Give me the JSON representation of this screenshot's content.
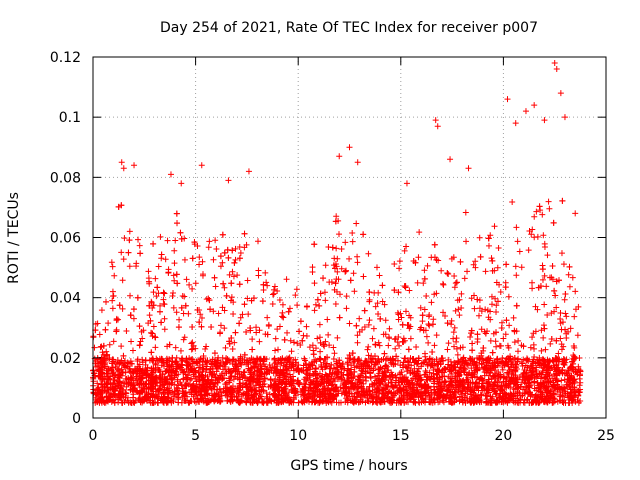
{
  "chart_data": {
    "type": "scatter",
    "title": "Day 254 of 2021, Rate Of TEC Index for receiver p007",
    "xlabel": "GPS time / hours",
    "ylabel": "ROTI / TECUs",
    "xlim": [
      0,
      25
    ],
    "ylim": [
      0,
      0.12
    ],
    "xticks": [
      0,
      5,
      10,
      15,
      20,
      25
    ],
    "xtick_labels": [
      "0",
      "5",
      "10",
      "15",
      "20",
      "25"
    ],
    "yticks": [
      0,
      0.02,
      0.04,
      0.06,
      0.08,
      0.1,
      0.12
    ],
    "ytick_labels": [
      "0",
      "0.02",
      "0.04",
      "0.06",
      "0.08",
      "0.1",
      "0.12"
    ],
    "grid": true,
    "marker": "+",
    "marker_color": "#ff0000",
    "x_range_of_data": [
      0,
      23.75
    ],
    "baseline_band": [
      0.005,
      0.02
    ],
    "notable_points": [
      {
        "x": 1.4,
        "y": 0.085
      },
      {
        "x": 1.5,
        "y": 0.083
      },
      {
        "x": 2.0,
        "y": 0.084
      },
      {
        "x": 3.8,
        "y": 0.081
      },
      {
        "x": 4.3,
        "y": 0.078
      },
      {
        "x": 5.3,
        "y": 0.084
      },
      {
        "x": 6.6,
        "y": 0.079
      },
      {
        "x": 7.6,
        "y": 0.082
      },
      {
        "x": 12.0,
        "y": 0.087
      },
      {
        "x": 12.5,
        "y": 0.09
      },
      {
        "x": 12.9,
        "y": 0.085
      },
      {
        "x": 15.3,
        "y": 0.078
      },
      {
        "x": 16.7,
        "y": 0.099
      },
      {
        "x": 16.8,
        "y": 0.097
      },
      {
        "x": 17.4,
        "y": 0.086
      },
      {
        "x": 18.3,
        "y": 0.083
      },
      {
        "x": 20.2,
        "y": 0.106
      },
      {
        "x": 20.6,
        "y": 0.098
      },
      {
        "x": 21.1,
        "y": 0.102
      },
      {
        "x": 21.5,
        "y": 0.104
      },
      {
        "x": 22.0,
        "y": 0.099
      },
      {
        "x": 22.5,
        "y": 0.118
      },
      {
        "x": 22.6,
        "y": 0.116
      },
      {
        "x": 22.8,
        "y": 0.108
      },
      {
        "x": 23.0,
        "y": 0.1
      },
      {
        "x": 23.5,
        "y": 0.068
      }
    ],
    "envelope": [
      {
        "x": 0.0,
        "y": 0.032
      },
      {
        "x": 0.5,
        "y": 0.045
      },
      {
        "x": 1.0,
        "y": 0.058
      },
      {
        "x": 1.5,
        "y": 0.068
      },
      {
        "x": 2.0,
        "y": 0.062
      },
      {
        "x": 2.5,
        "y": 0.05
      },
      {
        "x": 3.0,
        "y": 0.055
      },
      {
        "x": 3.5,
        "y": 0.06
      },
      {
        "x": 4.0,
        "y": 0.064
      },
      {
        "x": 4.5,
        "y": 0.06
      },
      {
        "x": 5.0,
        "y": 0.058
      },
      {
        "x": 5.5,
        "y": 0.062
      },
      {
        "x": 6.0,
        "y": 0.065
      },
      {
        "x": 6.5,
        "y": 0.068
      },
      {
        "x": 7.0,
        "y": 0.06
      },
      {
        "x": 7.5,
        "y": 0.065
      },
      {
        "x": 8.0,
        "y": 0.055
      },
      {
        "x": 8.5,
        "y": 0.05
      },
      {
        "x": 9.0,
        "y": 0.045
      },
      {
        "x": 9.5,
        "y": 0.048
      },
      {
        "x": 10.0,
        "y": 0.05
      },
      {
        "x": 10.5,
        "y": 0.058
      },
      {
        "x": 11.0,
        "y": 0.048
      },
      {
        "x": 11.5,
        "y": 0.052
      },
      {
        "x": 12.0,
        "y": 0.066
      },
      {
        "x": 12.5,
        "y": 0.07
      },
      {
        "x": 13.0,
        "y": 0.06
      },
      {
        "x": 13.5,
        "y": 0.05
      },
      {
        "x": 14.0,
        "y": 0.046
      },
      {
        "x": 14.5,
        "y": 0.048
      },
      {
        "x": 15.0,
        "y": 0.052
      },
      {
        "x": 15.5,
        "y": 0.06
      },
      {
        "x": 16.0,
        "y": 0.064
      },
      {
        "x": 16.5,
        "y": 0.07
      },
      {
        "x": 17.0,
        "y": 0.066
      },
      {
        "x": 17.5,
        "y": 0.062
      },
      {
        "x": 18.0,
        "y": 0.066
      },
      {
        "x": 18.5,
        "y": 0.064
      },
      {
        "x": 19.0,
        "y": 0.066
      },
      {
        "x": 19.5,
        "y": 0.062
      },
      {
        "x": 20.0,
        "y": 0.056
      },
      {
        "x": 20.5,
        "y": 0.066
      },
      {
        "x": 21.0,
        "y": 0.07
      },
      {
        "x": 21.5,
        "y": 0.072
      },
      {
        "x": 22.0,
        "y": 0.066
      },
      {
        "x": 22.5,
        "y": 0.075
      },
      {
        "x": 23.0,
        "y": 0.062
      },
      {
        "x": 23.5,
        "y": 0.04
      },
      {
        "x": 23.75,
        "y": 0.035
      }
    ]
  }
}
